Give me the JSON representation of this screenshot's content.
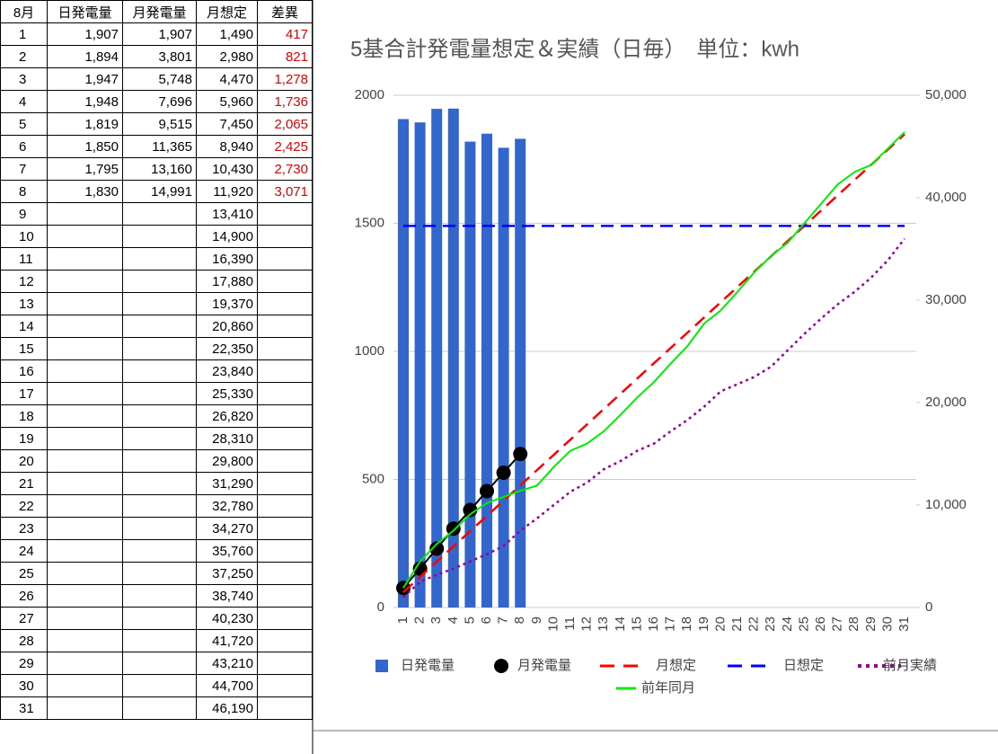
{
  "table": {
    "header": [
      "8月",
      "日発電量",
      "月発電量",
      "月想定",
      "差異"
    ],
    "rows": [
      [
        "1",
        "1,907",
        "1,907",
        "1,490",
        "417"
      ],
      [
        "2",
        "1,894",
        "3,801",
        "2,980",
        "821"
      ],
      [
        "3",
        "1,947",
        "5,748",
        "4,470",
        "1,278"
      ],
      [
        "4",
        "1,948",
        "7,696",
        "5,960",
        "1,736"
      ],
      [
        "5",
        "1,819",
        "9,515",
        "7,450",
        "2,065"
      ],
      [
        "6",
        "1,850",
        "11,365",
        "8,940",
        "2,425"
      ],
      [
        "7",
        "1,795",
        "13,160",
        "10,430",
        "2,730"
      ],
      [
        "8",
        "1,830",
        "14,991",
        "11,920",
        "3,071"
      ],
      [
        "9",
        null,
        null,
        "13,410",
        null
      ],
      [
        "10",
        null,
        null,
        "14,900",
        null
      ],
      [
        "11",
        null,
        null,
        "16,390",
        null
      ],
      [
        "12",
        null,
        null,
        "17,880",
        null
      ],
      [
        "13",
        null,
        null,
        "19,370",
        null
      ],
      [
        "14",
        null,
        null,
        "20,860",
        null
      ],
      [
        "15",
        null,
        null,
        "22,350",
        null
      ],
      [
        "16",
        null,
        null,
        "23,840",
        null
      ],
      [
        "17",
        null,
        null,
        "25,330",
        null
      ],
      [
        "18",
        null,
        null,
        "26,820",
        null
      ],
      [
        "19",
        null,
        null,
        "28,310",
        null
      ],
      [
        "20",
        null,
        null,
        "29,800",
        null
      ],
      [
        "21",
        null,
        null,
        "31,290",
        null
      ],
      [
        "22",
        null,
        null,
        "32,780",
        null
      ],
      [
        "23",
        null,
        null,
        "34,270",
        null
      ],
      [
        "24",
        null,
        null,
        "35,760",
        null
      ],
      [
        "25",
        null,
        null,
        "37,250",
        null
      ],
      [
        "26",
        null,
        null,
        "38,740",
        null
      ],
      [
        "27",
        null,
        null,
        "40,230",
        null
      ],
      [
        "28",
        null,
        null,
        "41,720",
        null
      ],
      [
        "29",
        null,
        null,
        "43,210",
        null
      ],
      [
        "30",
        null,
        null,
        "44,700",
        null
      ],
      [
        "31",
        null,
        null,
        "46,190",
        null
      ]
    ]
  },
  "chart_data": {
    "type": "combo",
    "title": "5基合計発電量想定＆実績（日毎）　単位：kwh",
    "categories": [
      1,
      2,
      3,
      4,
      5,
      6,
      7,
      8,
      9,
      10,
      11,
      12,
      13,
      14,
      15,
      16,
      17,
      18,
      19,
      20,
      21,
      22,
      23,
      24,
      25,
      26,
      27,
      28,
      29,
      30,
      31
    ],
    "ylim": [
      0,
      2000
    ],
    "yticks": [
      0,
      500,
      1000,
      1500,
      2000
    ],
    "y2lim": [
      0,
      50000
    ],
    "y2ticks": [
      0,
      {
        "value": 10000,
        "label": "10,000"
      },
      {
        "value": 20000,
        "label": "20,000"
      },
      {
        "value": 30000,
        "label": "30,000"
      },
      {
        "value": 40000,
        "label": "40,000"
      },
      {
        "value": 50000,
        "label": "50,000"
      }
    ],
    "grid": true,
    "legend": "bottom",
    "series": [
      {
        "name": "日発電量",
        "type": "bar",
        "color": "#3366cc",
        "values": [
          1907,
          1894,
          1947,
          1948,
          1819,
          1850,
          1795,
          1830,
          null,
          null,
          null,
          null,
          null,
          null,
          null,
          null,
          null,
          null,
          null,
          null,
          null,
          null,
          null,
          null,
          null,
          null,
          null,
          null,
          null,
          null,
          null
        ]
      },
      {
        "name": "月発電量",
        "type": "line",
        "marker": "circle",
        "axis": "y2",
        "color": "#000000",
        "values": [
          1907,
          3801,
          5748,
          7696,
          9515,
          11365,
          13160,
          14991,
          null,
          null,
          null,
          null,
          null,
          null,
          null,
          null,
          null,
          null,
          null,
          null,
          null,
          null,
          null,
          null,
          null,
          null,
          null,
          null,
          null,
          null,
          null
        ]
      },
      {
        "name": "月想定",
        "type": "line",
        "dash": "dashed",
        "axis": "y2",
        "color": "#ff0000",
        "values": [
          1490,
          2980,
          4470,
          5960,
          7450,
          8940,
          10430,
          11920,
          13410,
          14900,
          16390,
          17880,
          19370,
          20860,
          22350,
          23840,
          25330,
          26820,
          28310,
          29800,
          31290,
          32780,
          34270,
          35760,
          37250,
          38740,
          40230,
          41720,
          43210,
          44700,
          46190
        ]
      },
      {
        "name": "日想定",
        "type": "line",
        "dash": "dashed",
        "color": "#0000ff",
        "values": [
          1490,
          1490,
          1490,
          1490,
          1490,
          1490,
          1490,
          1490,
          1490,
          1490,
          1490,
          1490,
          1490,
          1490,
          1490,
          1490,
          1490,
          1490,
          1490,
          1490,
          1490,
          1490,
          1490,
          1490,
          1490,
          1490,
          1490,
          1490,
          1490,
          1490,
          1490
        ]
      },
      {
        "name": "前月実績",
        "type": "line",
        "dash": "dotted",
        "axis": "y2",
        "color": "#990099",
        "values": [
          1000,
          2500,
          3200,
          3800,
          4500,
          5200,
          6000,
          7500,
          8700,
          10000,
          11300,
          12200,
          13500,
          14300,
          15300,
          16000,
          17200,
          18300,
          19600,
          21100,
          21800,
          22500,
          23500,
          25100,
          26700,
          28200,
          29600,
          30800,
          32200,
          33900,
          36000
        ]
      },
      {
        "name": "前年同月",
        "type": "line",
        "axis": "y2",
        "color": "#00ee00",
        "values": [
          1900,
          4500,
          6200,
          7500,
          9100,
          10200,
          10800,
          11400,
          11900,
          13700,
          15300,
          16000,
          17200,
          18800,
          20500,
          22000,
          23800,
          25500,
          27700,
          29000,
          30800,
          32700,
          34300,
          35600,
          37500,
          39400,
          41300,
          42500,
          43200,
          44800,
          46400
        ]
      }
    ]
  }
}
